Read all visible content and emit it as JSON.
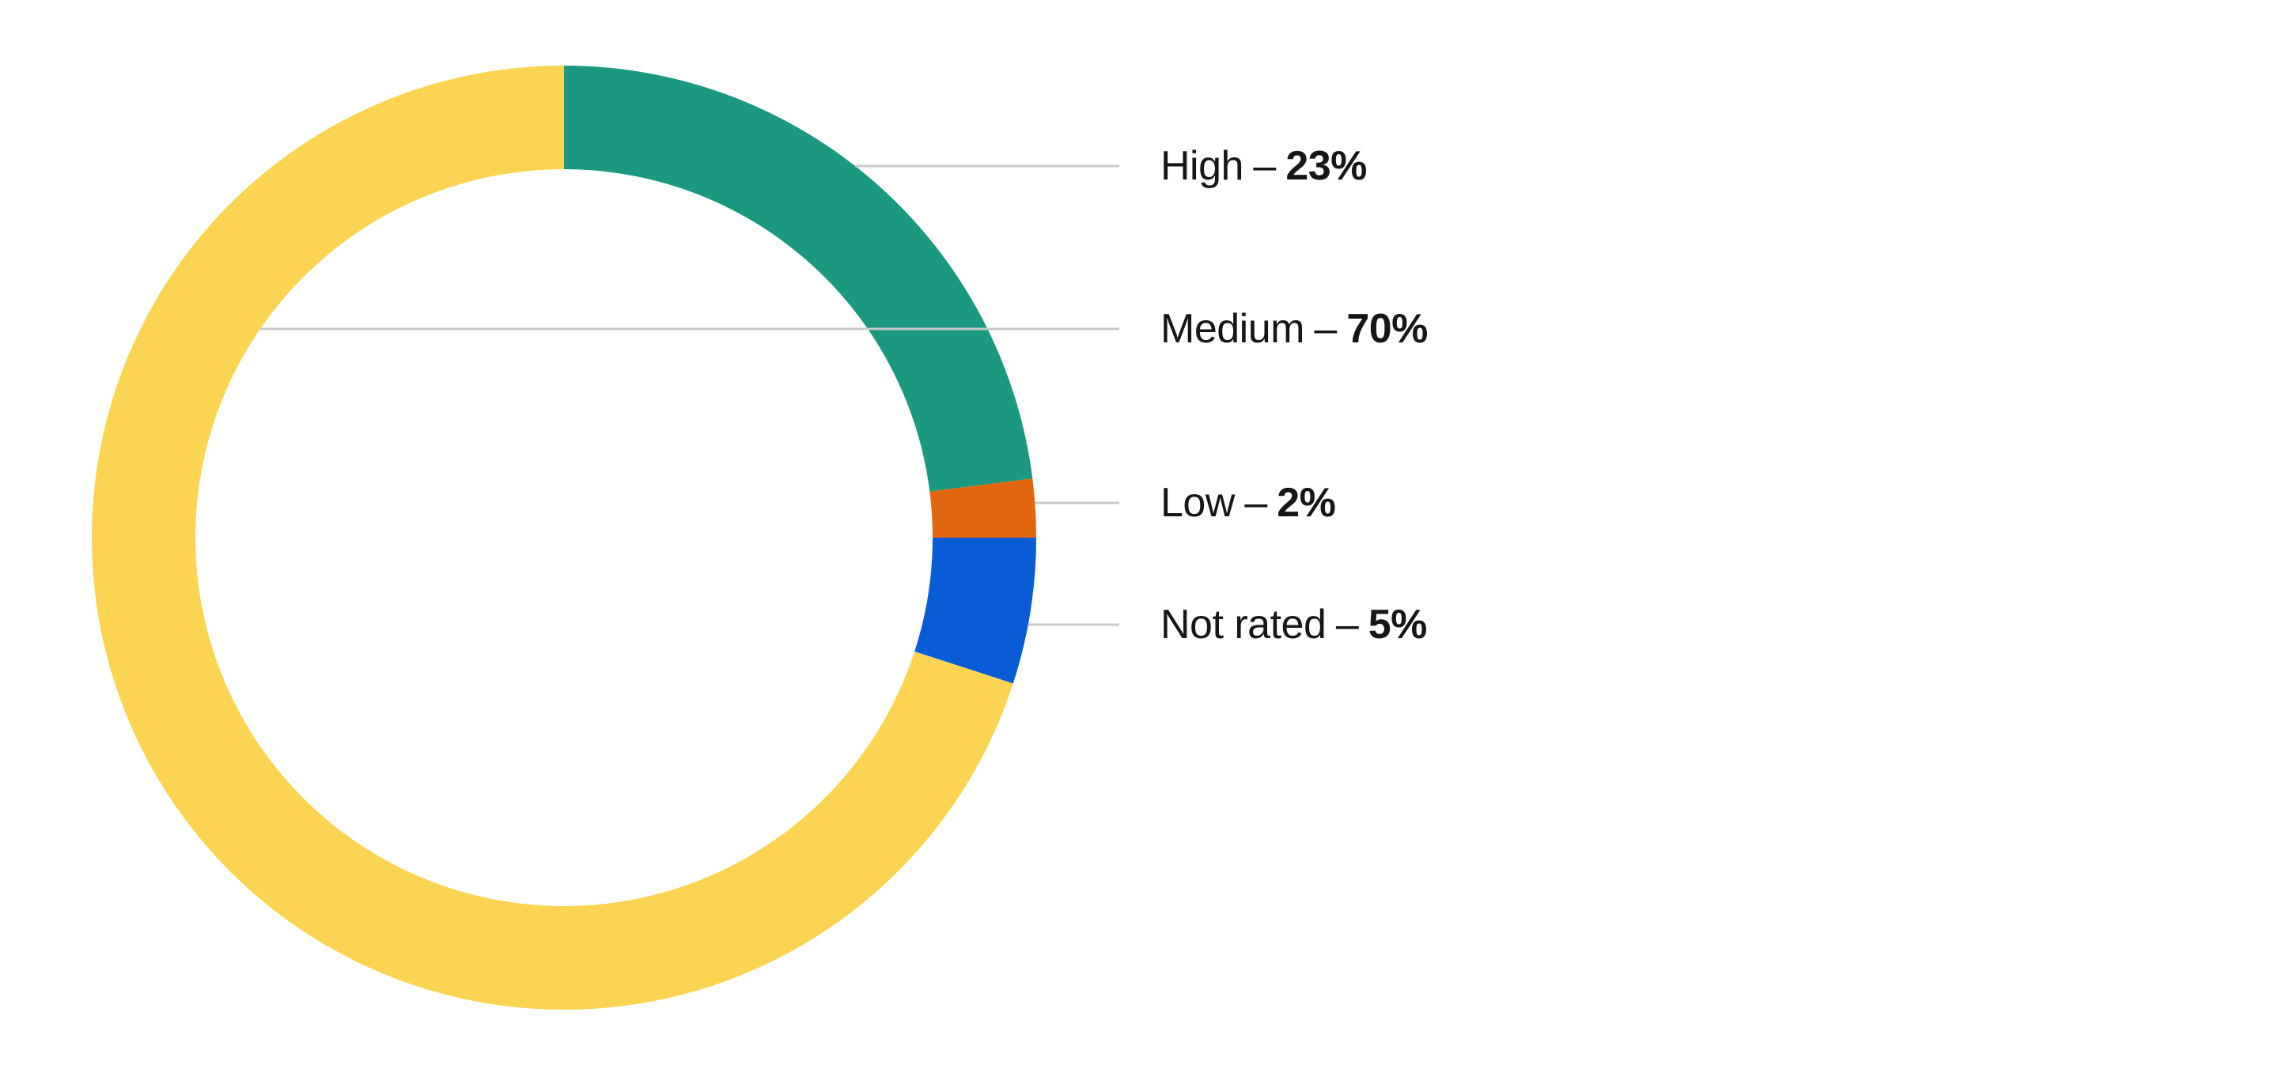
{
  "page": {
    "background_color": "#ffffff"
  },
  "chart_data": {
    "type": "pie",
    "subtype": "donut",
    "title": "",
    "legend_position": "right",
    "label_separator": "–",
    "text_color": "#161616",
    "leader_line_color": "#C9C9C9",
    "segments": [
      {
        "label": "High",
        "value": 23,
        "value_text": "23%",
        "color": "#1A9880",
        "leader_anchor": "outer-right"
      },
      {
        "label": "Medium",
        "value": 70,
        "value_text": "70%",
        "color": "#FDD451",
        "leader_anchor": "inner-left"
      },
      {
        "label": "Low",
        "value": 2,
        "value_text": "2%",
        "color": "#E0670F",
        "leader_anchor": "outer-right"
      },
      {
        "label": "Not rated",
        "value": 5,
        "value_text": "5%",
        "color": "#0A5CD6",
        "leader_anchor": "outer-right"
      }
    ],
    "clockwise_draw_order": [
      "High",
      "Low",
      "Not rated",
      "Medium"
    ],
    "start_angle_deg": 0
  }
}
